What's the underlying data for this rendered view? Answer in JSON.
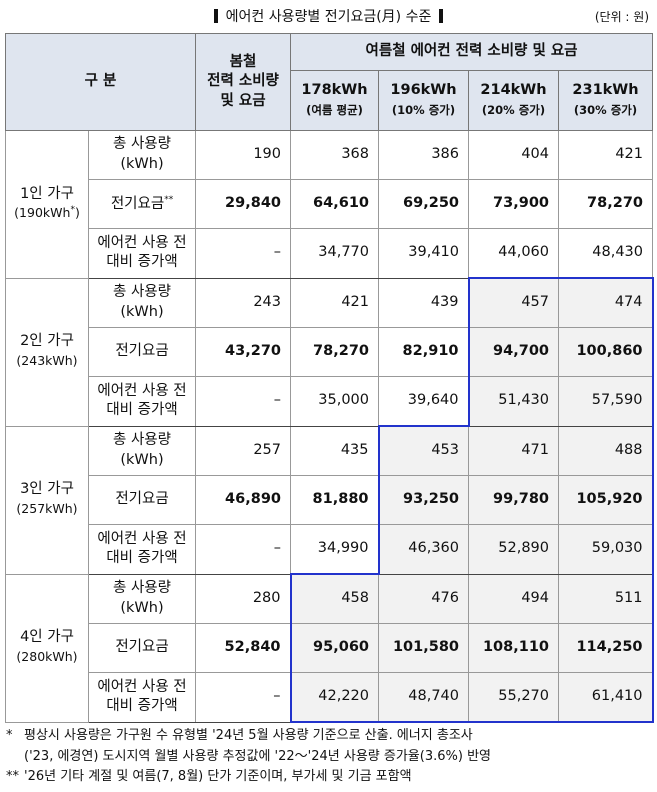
{
  "header": {
    "title": "에어컨 사용량별 전기요금(月) 수준",
    "unit": "(단위 : 원)"
  },
  "table": {
    "corner": "구 분",
    "spring": [
      "봄철",
      "전력 소비량",
      "및 요금"
    ],
    "summer": "여름철 에어컨 전력 소비량 및 요금",
    "columns": [
      {
        "kwh": "178kWh",
        "note": "(여름 평균)"
      },
      {
        "kwh": "196kWh",
        "note": "(10% 증가)"
      },
      {
        "kwh": "214kWh",
        "note": "(20% 증가)"
      },
      {
        "kwh": "231kWh",
        "note": "(30% 증가)"
      }
    ],
    "groups": [
      {
        "label": "1인 가구",
        "sub": "(190kWh",
        "sub_mark": "*",
        "sub_end": ")",
        "rows": [
          {
            "label": [
              "총 사용량",
              "(kWh)"
            ],
            "values": [
              "190",
              "368",
              "386",
              "404",
              "421"
            ]
          },
          {
            "label": [
              "전기요금"
            ],
            "mark": "**",
            "values": [
              "29,840",
              "64,610",
              "69,250",
              "73,900",
              "78,270"
            ]
          },
          {
            "label": [
              "에어컨 사용 전",
              "대비 증가액"
            ],
            "values": [
              "–",
              "34,770",
              "39,410",
              "44,060",
              "48,430"
            ]
          }
        ]
      },
      {
        "label": "2인 가구",
        "sub": "(243kWh)",
        "rows": [
          {
            "label": [
              "총 사용량",
              "(kWh)"
            ],
            "values": [
              "243",
              "421",
              "439",
              "457",
              "474"
            ]
          },
          {
            "label": [
              "전기요금"
            ],
            "values": [
              "43,270",
              "78,270",
              "82,910",
              "94,700",
              "100,860"
            ]
          },
          {
            "label": [
              "에어컨 사용 전",
              "대비 증가액"
            ],
            "values": [
              "–",
              "35,000",
              "39,640",
              "51,430",
              "57,590"
            ]
          }
        ]
      },
      {
        "label": "3인 가구",
        "sub": "(257kWh)",
        "rows": [
          {
            "label": [
              "총 사용량",
              "(kWh)"
            ],
            "values": [
              "257",
              "435",
              "453",
              "471",
              "488"
            ]
          },
          {
            "label": [
              "전기요금"
            ],
            "values": [
              "46,890",
              "81,880",
              "93,250",
              "99,780",
              "105,920"
            ]
          },
          {
            "label": [
              "에어컨 사용 전",
              "대비 증가액"
            ],
            "values": [
              "–",
              "34,990",
              "46,360",
              "52,890",
              "59,030"
            ]
          }
        ]
      },
      {
        "label": "4인 가구",
        "sub": "(280kWh)",
        "rows": [
          {
            "label": [
              "총 사용량",
              "(kWh)"
            ],
            "values": [
              "280",
              "458",
              "476",
              "494",
              "511"
            ]
          },
          {
            "label": [
              "전기요금"
            ],
            "values": [
              "52,840",
              "95,060",
              "101,580",
              "108,110",
              "114,250"
            ]
          },
          {
            "label": [
              "에어컨 사용 전",
              "대비 증가액"
            ],
            "values": [
              "–",
              "42,220",
              "48,740",
              "55,270",
              "61,410"
            ]
          }
        ]
      }
    ]
  },
  "footnotes": [
    {
      "mark": "*",
      "lines": [
        "평상시 사용량은 가구원 수 유형별 '24년 5월 사용량 기준으로 산출. 에너지 총조사",
        "('23, 에경연) 도시지역 월별 사용량 추정값에 '22～'24년 사용량 증가율(3.6%) 반영"
      ]
    },
    {
      "mark": "**",
      "lines": [
        "'26년 기타 계절 및 여름(7, 8월) 단가 기준이며, 부가세 및 기금 포함액"
      ]
    }
  ]
}
